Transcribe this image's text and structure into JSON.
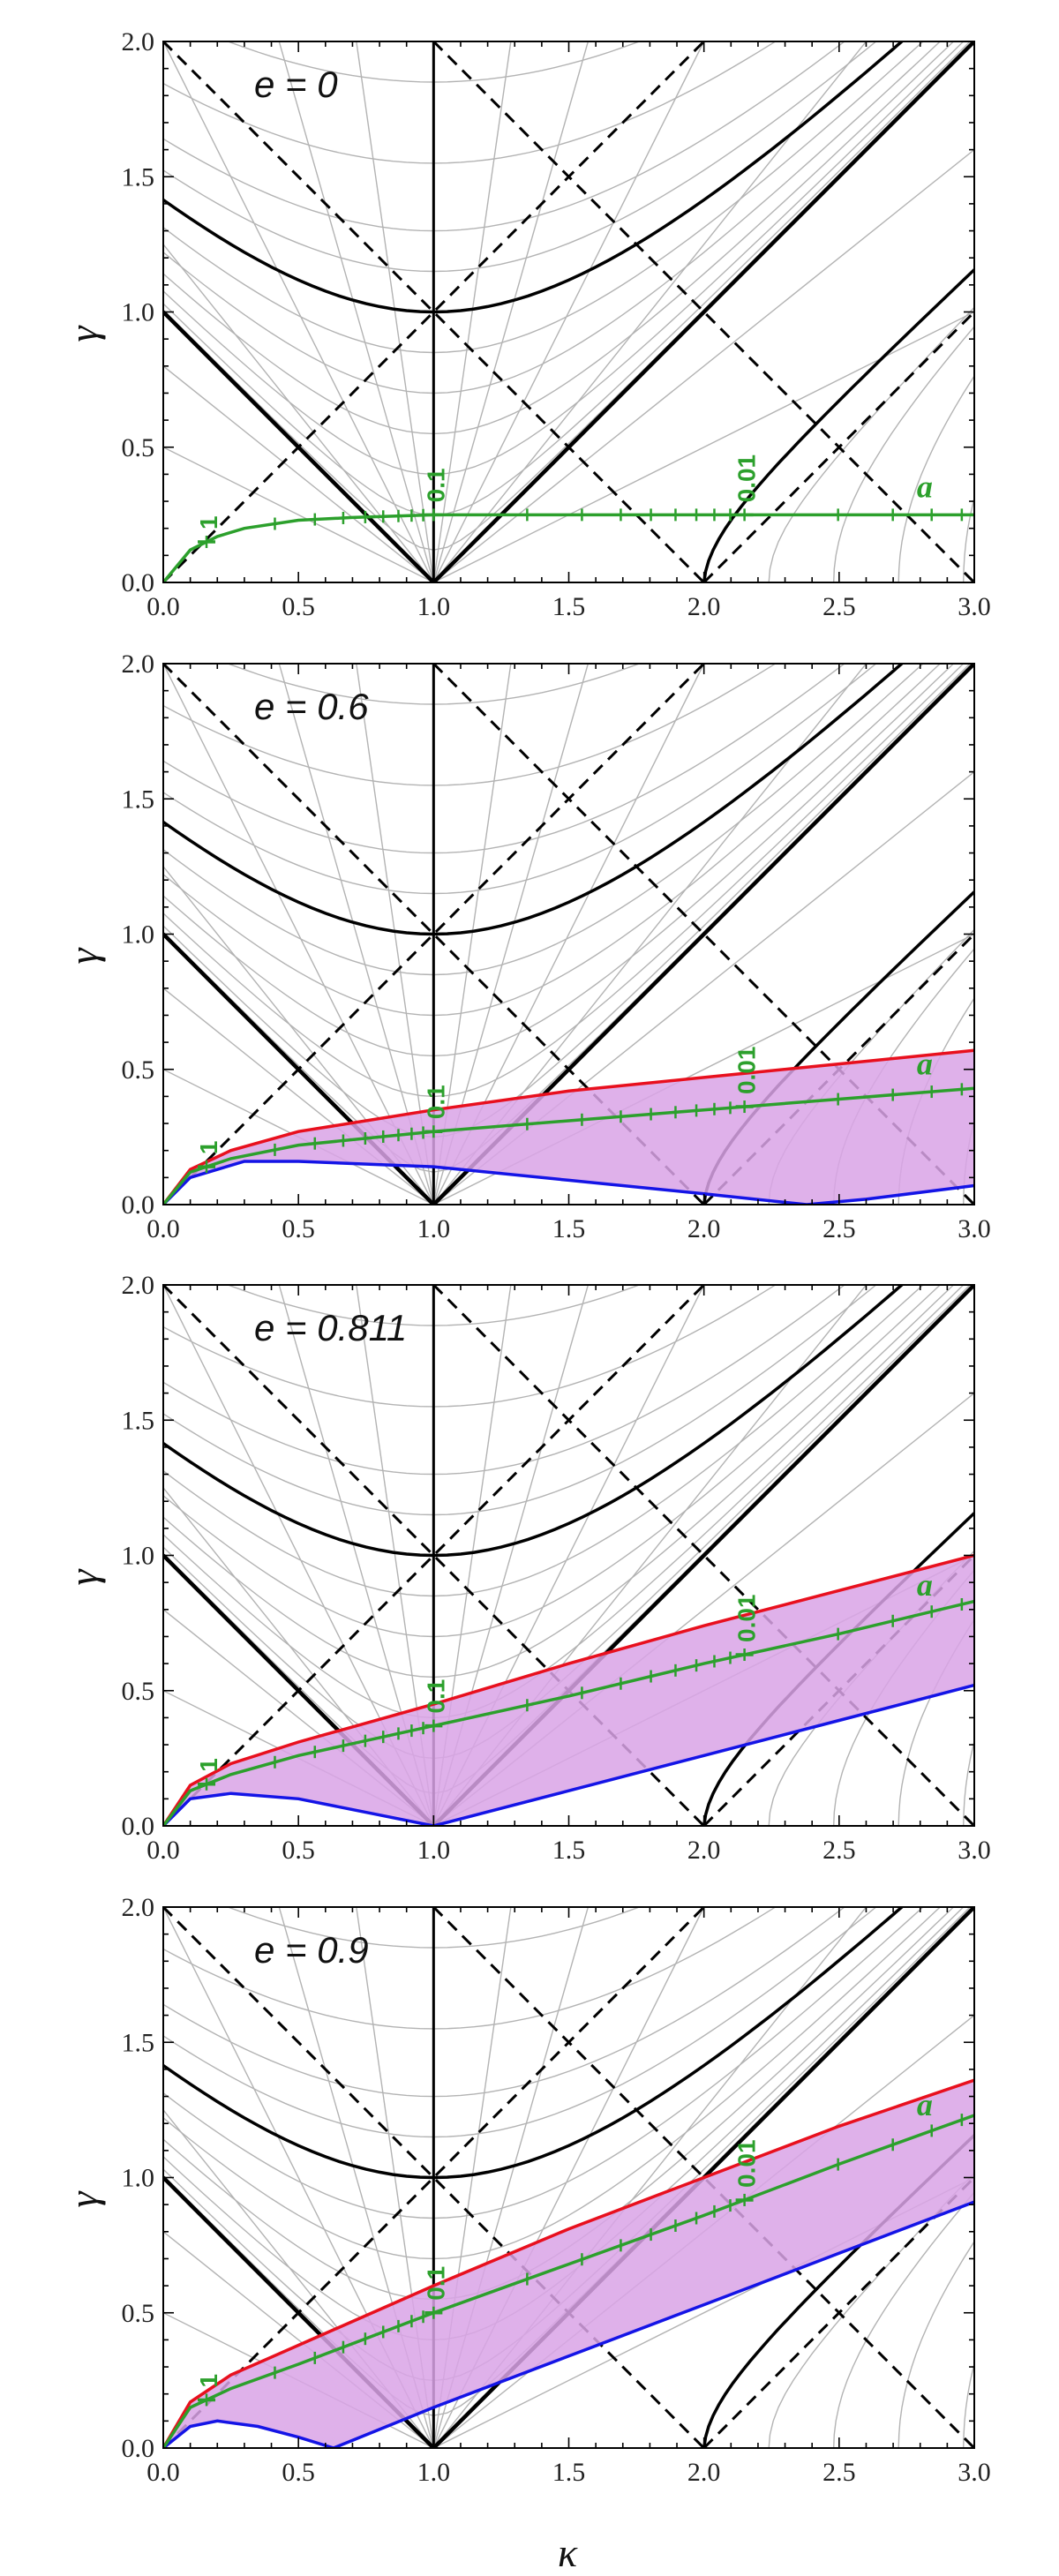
{
  "colors": {
    "green": "#2ca02c",
    "red": "#e8101e",
    "blue": "#1414e6",
    "band": "#d9a3e6",
    "grid": "#b3b3b3",
    "black": "#000000"
  },
  "x_axis": {
    "label": "κ",
    "ticks": [
      "0.0",
      "0.5",
      "1.0",
      "1.5",
      "2.0",
      "2.5",
      "3.0"
    ]
  },
  "y_axis": {
    "label": "γ",
    "ticks": [
      "0.0",
      "0.5",
      "1.0",
      "1.5",
      "2.0"
    ]
  },
  "chart_data": [
    {
      "type": "line",
      "panel_label": "e = 0",
      "e": 0,
      "xlim": [
        0,
        3
      ],
      "ylim": [
        0,
        2
      ],
      "xlabel": "",
      "ylabel": "γ",
      "green_label": "a",
      "tick_labels": [
        "1",
        "0.1",
        "0.01"
      ],
      "tick_kappas": [
        0.16,
        1.0,
        2.15
      ],
      "series": [
        {
          "name": "a (green)",
          "x": [
            0,
            0.1,
            0.2,
            0.3,
            0.5,
            0.7,
            1.0,
            1.5,
            2.0,
            2.5,
            3.0
          ],
          "values": [
            0,
            0.12,
            0.17,
            0.2,
            0.23,
            0.24,
            0.25,
            0.25,
            0.25,
            0.25,
            0.25
          ]
        }
      ]
    },
    {
      "type": "area",
      "panel_label": "e = 0.6",
      "e": 0.6,
      "xlim": [
        0,
        3
      ],
      "ylim": [
        0,
        2
      ],
      "xlabel": "",
      "ylabel": "γ",
      "green_label": "a",
      "tick_labels": [
        "1",
        "0.1",
        "0.01"
      ],
      "tick_kappas": [
        0.16,
        1.0,
        2.15
      ],
      "series": [
        {
          "name": "upper (red)",
          "x": [
            0,
            0.1,
            0.25,
            0.5,
            1.0,
            1.5,
            2.0,
            2.5,
            3.0
          ],
          "values": [
            0,
            0.13,
            0.2,
            0.27,
            0.35,
            0.42,
            0.47,
            0.52,
            0.57
          ]
        },
        {
          "name": "a (green)",
          "x": [
            0,
            0.1,
            0.25,
            0.5,
            1.0,
            1.5,
            2.0,
            2.5,
            3.0
          ],
          "values": [
            0,
            0.12,
            0.17,
            0.22,
            0.27,
            0.31,
            0.35,
            0.39,
            0.43
          ]
        },
        {
          "name": "lower (blue)",
          "x": [
            0,
            0.1,
            0.3,
            0.5,
            1.0,
            1.5,
            2.0,
            2.38,
            2.6,
            3.0
          ],
          "values": [
            0,
            0.1,
            0.16,
            0.16,
            0.14,
            0.09,
            0.04,
            0.0,
            0.02,
            0.07
          ]
        }
      ]
    },
    {
      "type": "area",
      "panel_label": "e = 0.811",
      "e": 0.811,
      "xlim": [
        0,
        3
      ],
      "ylim": [
        0,
        2
      ],
      "xlabel": "",
      "ylabel": "γ",
      "green_label": "a",
      "tick_labels": [
        "1",
        "0.1",
        "0.01"
      ],
      "tick_kappas": [
        0.16,
        1.0,
        2.15
      ],
      "series": [
        {
          "name": "upper (red)",
          "x": [
            0,
            0.1,
            0.25,
            0.5,
            1.0,
            1.5,
            2.0,
            2.5,
            3.0
          ],
          "values": [
            0,
            0.15,
            0.23,
            0.31,
            0.45,
            0.6,
            0.74,
            0.87,
            1.0
          ]
        },
        {
          "name": "a (green)",
          "x": [
            0,
            0.1,
            0.25,
            0.5,
            1.0,
            1.5,
            2.0,
            2.5,
            3.0
          ],
          "values": [
            0,
            0.13,
            0.19,
            0.26,
            0.37,
            0.48,
            0.6,
            0.71,
            0.83
          ]
        },
        {
          "name": "lower (blue)",
          "x": [
            0,
            0.1,
            0.25,
            0.5,
            0.8,
            1.0,
            1.5,
            2.0,
            2.5,
            3.0
          ],
          "values": [
            0,
            0.1,
            0.12,
            0.1,
            0.04,
            0.0,
            0.13,
            0.26,
            0.39,
            0.52
          ]
        }
      ]
    },
    {
      "type": "area",
      "panel_label": "e = 0.9",
      "e": 0.9,
      "xlim": [
        0,
        3
      ],
      "ylim": [
        0,
        2
      ],
      "xlabel": "κ",
      "ylabel": "γ",
      "green_label": "a",
      "tick_labels": [
        "1",
        "0.1",
        "0.01"
      ],
      "tick_kappas": [
        0.16,
        1.0,
        2.15
      ],
      "series": [
        {
          "name": "upper (red)",
          "x": [
            0,
            0.1,
            0.25,
            0.5,
            1.0,
            1.5,
            2.0,
            2.5,
            3.0
          ],
          "values": [
            0,
            0.17,
            0.27,
            0.38,
            0.6,
            0.81,
            1.0,
            1.19,
            1.36
          ]
        },
        {
          "name": "a (green)",
          "x": [
            0,
            0.1,
            0.25,
            0.5,
            1.0,
            1.5,
            2.0,
            2.5,
            3.0
          ],
          "values": [
            0,
            0.15,
            0.22,
            0.31,
            0.5,
            0.68,
            0.86,
            1.05,
            1.23
          ]
        },
        {
          "name": "lower (blue)",
          "x": [
            0,
            0.1,
            0.2,
            0.35,
            0.5,
            0.63,
            1.0,
            1.5,
            2.0,
            2.5,
            3.0
          ],
          "values": [
            0,
            0.08,
            0.1,
            0.08,
            0.04,
            0.0,
            0.15,
            0.34,
            0.53,
            0.72,
            0.91
          ]
        }
      ]
    }
  ]
}
